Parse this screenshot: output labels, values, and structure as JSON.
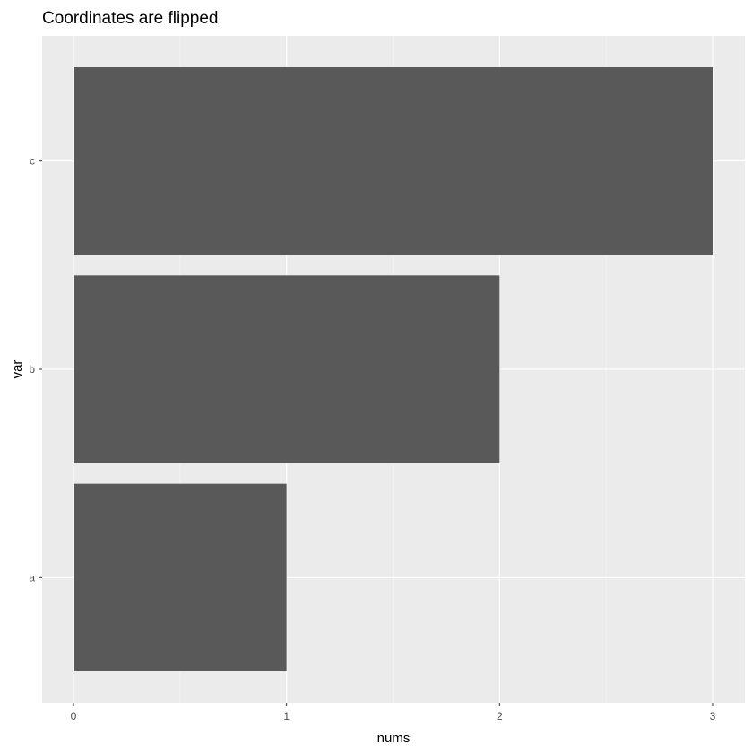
{
  "chart_data": {
    "type": "bar",
    "orientation": "horizontal",
    "title": "Coordinates are flipped",
    "xlabel": "nums",
    "ylabel": "var",
    "categories": [
      "a",
      "b",
      "c"
    ],
    "values": [
      1,
      2,
      3
    ],
    "xlim": [
      0,
      3
    ],
    "xticks": [
      "0",
      "1",
      "2",
      "3"
    ],
    "grid": true,
    "legend": "none",
    "colors": {
      "bar": "#595959",
      "panel": "#ebebeb",
      "grid_major": "#ffffff",
      "grid_minor": "#f5f5f5",
      "tick": "#333333"
    }
  }
}
